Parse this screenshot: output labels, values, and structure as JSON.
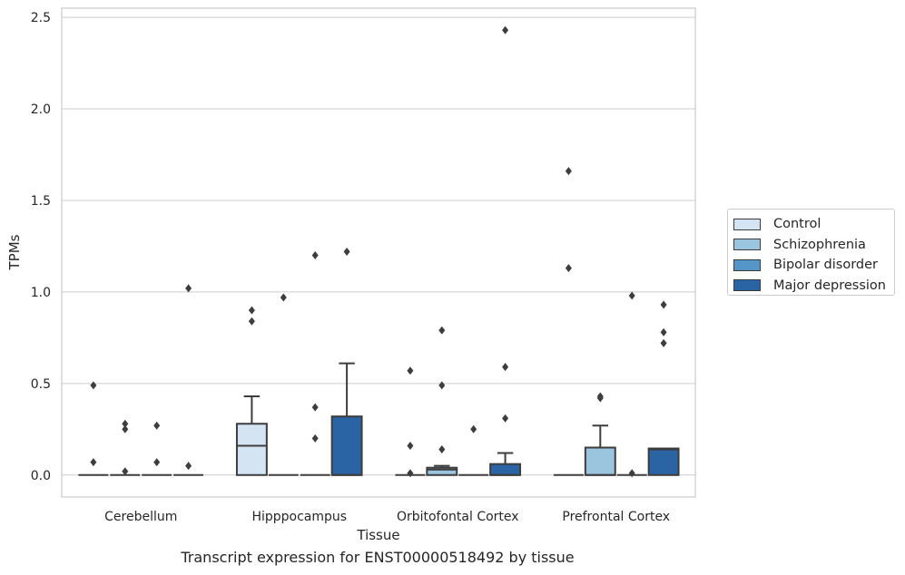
{
  "chart_data": {
    "type": "box",
    "caption": "Transcript expression for ENST00000518492 by tissue",
    "xlabel": "Tissue",
    "ylabel": "TPMs",
    "ylim": [
      -0.12,
      2.55
    ],
    "yticks": [
      "0.0",
      "0.5",
      "1.0",
      "1.5",
      "2.0",
      "2.5"
    ],
    "ytick_values": [
      0.0,
      0.5,
      1.0,
      1.5,
      2.0,
      2.5
    ],
    "grid": "horizontal",
    "legend_position": "right",
    "categories": [
      "Cerebellum",
      "Hipppocampus",
      "Orbitofontal Cortex",
      "Prefrontal Cortex"
    ],
    "series": [
      {
        "name": "Control",
        "color": "#d4e4f3",
        "boxes": [
          {
            "q1": 0.0,
            "median": 0.0,
            "q3": 0.0,
            "whisker_low": 0.0,
            "whisker_high": 0.0,
            "outliers": [
              0.07,
              0.49
            ]
          },
          {
            "q1": 0.0,
            "median": 0.16,
            "q3": 0.28,
            "whisker_low": 0.0,
            "whisker_high": 0.43,
            "outliers": [
              0.84,
              0.9
            ]
          },
          {
            "q1": 0.0,
            "median": 0.0,
            "q3": 0.0,
            "whisker_low": 0.0,
            "whisker_high": 0.0,
            "outliers": [
              0.01,
              0.16,
              0.57
            ]
          },
          {
            "q1": 0.0,
            "median": 0.0,
            "q3": 0.0,
            "whisker_low": 0.0,
            "whisker_high": 0.0,
            "outliers": [
              1.13,
              1.66
            ]
          }
        ]
      },
      {
        "name": "Schizophrenia",
        "color": "#9bc4de",
        "boxes": [
          {
            "q1": 0.0,
            "median": 0.0,
            "q3": 0.0,
            "whisker_low": 0.0,
            "whisker_high": 0.0,
            "outliers": [
              0.02,
              0.25,
              0.28
            ]
          },
          {
            "q1": 0.0,
            "median": 0.0,
            "q3": 0.0,
            "whisker_low": 0.0,
            "whisker_high": 0.0,
            "outliers": [
              0.97
            ]
          },
          {
            "q1": 0.0,
            "median": 0.03,
            "q3": 0.04,
            "whisker_low": 0.0,
            "whisker_high": 0.05,
            "outliers": [
              0.14,
              0.49,
              0.79
            ]
          },
          {
            "q1": 0.0,
            "median": 0.0,
            "q3": 0.15,
            "whisker_low": 0.0,
            "whisker_high": 0.27,
            "outliers": [
              0.42,
              0.43
            ]
          }
        ]
      },
      {
        "name": "Bipolar disorder",
        "color": "#5496c7",
        "boxes": [
          {
            "q1": 0.0,
            "median": 0.0,
            "q3": 0.0,
            "whisker_low": 0.0,
            "whisker_high": 0.0,
            "outliers": [
              0.07,
              0.27
            ]
          },
          {
            "q1": 0.0,
            "median": 0.0,
            "q3": 0.0,
            "whisker_low": 0.0,
            "whisker_high": 0.0,
            "outliers": [
              0.2,
              0.37,
              1.2
            ]
          },
          {
            "q1": 0.0,
            "median": 0.0,
            "q3": 0.0,
            "whisker_low": 0.0,
            "whisker_high": 0.0,
            "outliers": [
              0.25
            ]
          },
          {
            "q1": 0.0,
            "median": 0.0,
            "q3": 0.0,
            "whisker_low": 0.0,
            "whisker_high": 0.0,
            "outliers": [
              0.01,
              0.98
            ]
          }
        ]
      },
      {
        "name": "Major depression",
        "color": "#2a64a4",
        "boxes": [
          {
            "q1": 0.0,
            "median": 0.0,
            "q3": 0.0,
            "whisker_low": 0.0,
            "whisker_high": 0.0,
            "outliers": [
              0.05,
              1.02
            ]
          },
          {
            "q1": 0.0,
            "median": 0.0,
            "q3": 0.32,
            "whisker_low": 0.0,
            "whisker_high": 0.61,
            "outliers": [
              1.22
            ]
          },
          {
            "q1": 0.0,
            "median": 0.0,
            "q3": 0.06,
            "whisker_low": 0.0,
            "whisker_high": 0.12,
            "outliers": [
              0.31,
              0.59,
              2.43
            ]
          },
          {
            "q1": 0.0,
            "median": 0.14,
            "q3": 0.145,
            "whisker_low": 0.0,
            "whisker_high": 0.145,
            "outliers": [
              0.72,
              0.78,
              0.93
            ]
          }
        ]
      }
    ]
  }
}
